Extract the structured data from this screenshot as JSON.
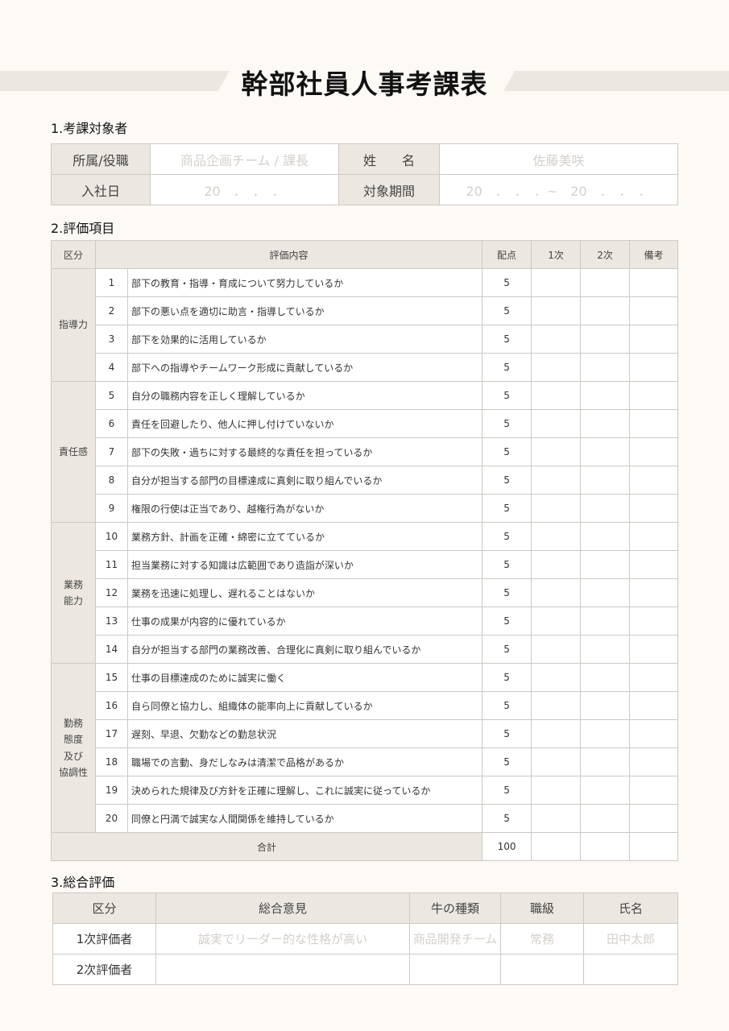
{
  "title": "幹部社員人事考課表",
  "section1": {
    "heading": "1.考課対象者",
    "affiliation_label": "所属/役職",
    "affiliation_value": "商品企画チーム / 課長",
    "name_label": "姓　　名",
    "name_value": "佐藤美咲",
    "joined_label": "入社日",
    "joined_value": "20　．　．　．",
    "period_label": "対象期間",
    "period_value": "20　．　．　．~　20　．　．　．"
  },
  "section2": {
    "heading": "2.評価項目",
    "headers": [
      "区分",
      "評価内容",
      "配点",
      "1次",
      "2次",
      "備考"
    ],
    "groups": [
      {
        "label": "指導力",
        "items": [
          [
            1,
            "部下の教育・指導・育成について努力しているか",
            5
          ],
          [
            2,
            "部下の悪い点を適切に助言・指導しているか",
            5
          ],
          [
            3,
            "部下を効果的に活用しているか",
            5
          ],
          [
            4,
            "部下への指導やチームワーク形成に貢献しているか",
            5
          ]
        ]
      },
      {
        "label": "責任感",
        "items": [
          [
            5,
            "自分の職務内容を正しく理解しているか",
            5
          ],
          [
            6,
            "責任を回避したり、他人に押し付けていないか",
            5
          ],
          [
            7,
            "部下の失敗・過ちに対する最終的な責任を担っているか",
            5
          ],
          [
            8,
            "自分が担当する部門の目標達成に真剣に取り組んでいるか",
            5
          ],
          [
            9,
            "権限の行使は正当であり、越権行為がないか",
            5
          ]
        ]
      },
      {
        "label": "業務\n能力",
        "items": [
          [
            10,
            "業務方針、計画を正確・綿密に立てているか",
            5
          ],
          [
            11,
            "担当業務に対する知識は広範囲であり造詣が深いか",
            5
          ],
          [
            12,
            "業務を迅速に処理し、遅れることはないか",
            5
          ],
          [
            13,
            "仕事の成果が内容的に優れているか",
            5
          ],
          [
            14,
            "自分が担当する部門の業務改善、合理化に真剣に取り組んでいるか",
            5
          ]
        ]
      },
      {
        "label": "勤務\n態度\n及び\n協調性",
        "items": [
          [
            15,
            "仕事の目標達成のために誠実に働く",
            5
          ],
          [
            16,
            "自ら同僚と協力し、組織体の能率向上に貢献しているか",
            5
          ],
          [
            17,
            "遅刻、早退、欠勤などの勤怠状況",
            5
          ],
          [
            18,
            "職場での言動、身だしなみは清潔で品格があるか",
            5
          ],
          [
            19,
            "決められた規律及び方針を正確に理解し、これに誠実に従っているか",
            5
          ],
          [
            20,
            "同僚と円満で誠実な人間関係を維持しているか",
            5
          ]
        ]
      }
    ],
    "total_label": "合計",
    "total_value": 100
  },
  "section3": {
    "heading": "3.総合評価",
    "headers": [
      "区分",
      "総合意見",
      "牛の種類",
      "職級",
      "氏名"
    ],
    "rows": [
      [
        "1次評価者",
        "誠実でリーダー的な性格が高い",
        "商品開発チーム",
        "常務",
        "田中太郎"
      ],
      [
        "2次評価者",
        "",
        "",
        "",
        ""
      ]
    ]
  }
}
